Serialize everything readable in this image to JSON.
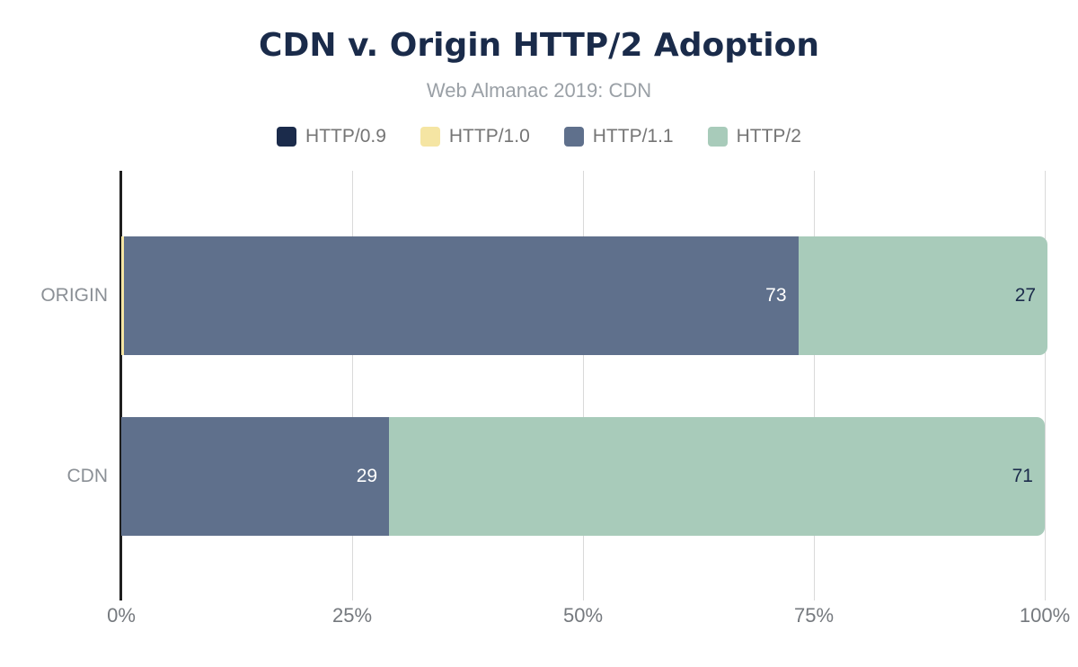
{
  "title": "CDN v. Origin HTTP/2 Adoption",
  "subtitle": "Web Almanac 2019: CDN",
  "chart_data": {
    "type": "bar",
    "orientation": "horizontal",
    "stacked": true,
    "title": "CDN v. Origin HTTP/2 Adoption",
    "subtitle": "Web Almanac 2019: CDN",
    "categories": [
      "ORIGIN",
      "CDN"
    ],
    "series": [
      {
        "name": "HTTP/0.9",
        "color": "#1b2b4b",
        "values": [
          0,
          0
        ],
        "labels": [
          "",
          ""
        ],
        "label_color": "#ffffff"
      },
      {
        "name": "HTTP/1.0",
        "color": "#f5e5a3",
        "values": [
          0.3,
          0
        ],
        "labels": [
          "",
          ""
        ],
        "label_color": "#1b2b4b"
      },
      {
        "name": "HTTP/1.1",
        "color": "#5f708c",
        "values": [
          73,
          29
        ],
        "labels": [
          "73",
          "29"
        ],
        "label_color": "#ffffff"
      },
      {
        "name": "HTTP/2",
        "color": "#a8cbba",
        "values": [
          27,
          71
        ],
        "labels": [
          "27",
          "71"
        ],
        "label_color": "#1b2b4b"
      }
    ],
    "xlim": [
      0,
      100
    ],
    "x_ticks": [
      "0%",
      "25%",
      "50%",
      "75%",
      "100%"
    ],
    "x_tick_values": [
      0,
      25,
      50,
      75,
      100
    ],
    "grid": true,
    "legend_position": "top"
  },
  "colors": {
    "page_bg": "#ffffff",
    "title_color": "#1a2b4a",
    "subtitle_color": "#9aa0a6",
    "legend_text": "#757575",
    "axis_line": "#1f1f1f",
    "gridline": "#d9d9d9",
    "category_label": "#8b9096",
    "tick_label": "#75797e"
  }
}
